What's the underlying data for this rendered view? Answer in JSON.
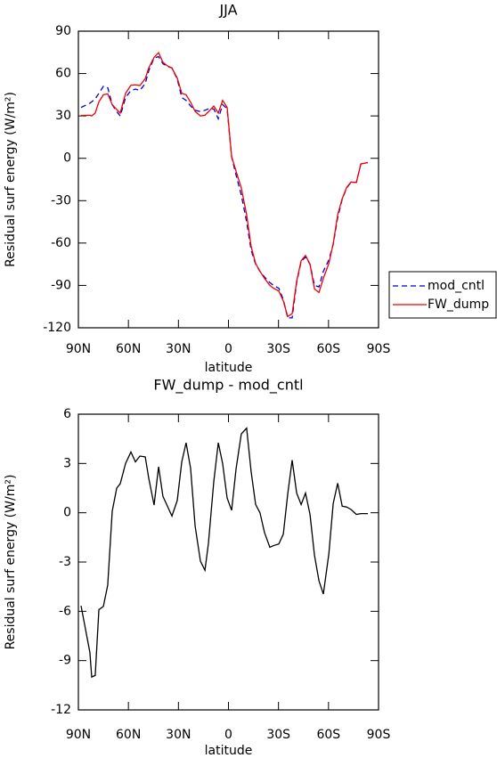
{
  "chart_data": [
    {
      "type": "line",
      "title": "JJA",
      "xlabel": "latitude",
      "ylabel": "Residual surf energy (W/m²)",
      "x": [
        88.4,
        83.1,
        82,
        79.9,
        77.7,
        75,
        72.4,
        69.7,
        67,
        64.9,
        61.7,
        58.5,
        55.8,
        53.1,
        49.9,
        47.8,
        44.6,
        41.9,
        39.3,
        36.6,
        33.9,
        30.7,
        28,
        25.4,
        22.7,
        20,
        16.8,
        14.1,
        12,
        8.8,
        6.1,
        3.5,
        0.8,
        -1.9,
        -4.6,
        -7.7,
        -10.9,
        -13.6,
        -16.3,
        -18.9,
        -21.6,
        -24.8,
        -27,
        -30.2,
        -32.9,
        -35.5,
        -38.2,
        -40.9,
        -43.6,
        -46.2,
        -48.9,
        -51.6,
        -54.3,
        -56.9,
        -60.2,
        -62.8,
        -65.5,
        -68.2,
        -70.9,
        -73.5,
        -76.7,
        -79.4,
        -83.6
      ],
      "series": [
        {
          "name": "mod_cntl",
          "color": "#0000cc",
          "dash": true,
          "values": [
            36,
            39,
            40,
            42,
            46,
            51,
            50,
            38,
            33,
            30,
            43,
            48,
            49,
            48,
            53,
            62,
            71,
            72,
            67,
            65,
            64,
            56,
            43,
            41,
            37,
            34,
            33,
            34,
            35,
            35,
            28,
            38,
            35,
            1,
            -12,
            -26,
            -45,
            -65,
            -75,
            -80,
            -84,
            -88,
            -90,
            -92,
            -100,
            -113,
            -113,
            -88,
            -73,
            -70,
            -75,
            -90,
            -91,
            -80,
            -72,
            -61,
            -42,
            -29,
            -21,
            -17,
            -17,
            -4,
            -3
          ]
        },
        {
          "name": "FW_dump",
          "color": "#ee0000",
          "dash": false,
          "values": [
            30.3,
            30.5,
            30,
            32,
            40,
            45,
            45.6,
            38,
            34.5,
            32,
            46,
            51.7,
            52,
            51.5,
            56.4,
            64,
            71.5,
            74.8,
            68,
            65.4,
            63.8,
            56.8,
            46,
            45,
            39.7,
            33.2,
            30,
            30.5,
            33,
            37,
            32,
            41,
            36,
            1.2,
            -9.3,
            -21,
            -40,
            -62.5,
            -74.5,
            -80,
            -85,
            -90,
            -92,
            -94,
            -101,
            -112,
            -110,
            -87,
            -72.5,
            -68.8,
            -75,
            -92.6,
            -95,
            -85,
            -74.5,
            -60.5,
            -40,
            -28.6,
            -20.6,
            -16.8,
            -17.1,
            -4,
            -3
          ]
        }
      ],
      "xlim": [
        90,
        -90
      ],
      "xticks": [
        {
          "value": 90,
          "label": "90N"
        },
        {
          "value": 60,
          "label": "60N"
        },
        {
          "value": 30,
          "label": "30N"
        },
        0,
        {
          "value": -30,
          "label": "30S"
        },
        {
          "value": -60,
          "label": "60S"
        },
        {
          "value": -90,
          "label": "90S"
        }
      ],
      "ylim": [
        -120,
        90
      ],
      "yticks": [
        -120,
        -90,
        -60,
        -30,
        0,
        30,
        60,
        90
      ],
      "legend": "right"
    },
    {
      "type": "line",
      "title": "FW_dump - mod_cntl",
      "xlabel": "latitude",
      "ylabel": "Residual surf energy (W/m²)",
      "x": [
        88.4,
        83.1,
        82,
        79.9,
        77.7,
        75,
        72.4,
        69.7,
        67,
        64.9,
        61.7,
        58.5,
        55.8,
        53.1,
        49.9,
        47.8,
        44.6,
        41.9,
        39.3,
        36.6,
        33.9,
        30.7,
        28,
        25.4,
        22.7,
        20,
        16.8,
        14.1,
        12,
        8.8,
        6.1,
        3.5,
        0.8,
        -1.9,
        -4.6,
        -7.7,
        -10.9,
        -13.6,
        -16.3,
        -18.9,
        -21.6,
        -24.8,
        -27,
        -30.2,
        -32.9,
        -35.5,
        -38.2,
        -40.9,
        -43.6,
        -46.2,
        -48.9,
        -51.6,
        -54.3,
        -56.9,
        -60.2,
        -62.8,
        -65.5,
        -68.2,
        -70.9,
        -73.5,
        -76.7,
        -79.4,
        -83.6
      ],
      "values": [
        -5.66,
        -8.5,
        -10,
        -9.9,
        -5.9,
        -5.7,
        -4.4,
        0.1,
        1.5,
        1.77,
        3.0,
        3.7,
        3.1,
        3.45,
        3.4,
        2.1,
        0.47,
        2.8,
        1.0,
        0.4,
        -0.2,
        0.75,
        3.1,
        4.26,
        2.7,
        -0.8,
        -2.95,
        -3.5,
        -1.85,
        1.9,
        4.26,
        3.0,
        0.9,
        0.15,
        2.7,
        4.8,
        5.15,
        2.5,
        0.5,
        0.0,
        -1.2,
        -2.1,
        -2.0,
        -1.9,
        -1.3,
        1.1,
        3.2,
        1.2,
        0.5,
        1.2,
        -0.1,
        -2.6,
        -4.15,
        -4.95,
        -2.5,
        0.55,
        1.8,
        0.4,
        0.35,
        0.2,
        -0.1,
        -0.05,
        -0.05
      ],
      "color": "#000000",
      "xlim": [
        90,
        -90
      ],
      "xticks": [
        {
          "value": 90,
          "label": "90N"
        },
        {
          "value": 60,
          "label": "60N"
        },
        {
          "value": 30,
          "label": "30N"
        },
        0,
        {
          "value": -30,
          "label": "30S"
        },
        {
          "value": -60,
          "label": "60S"
        },
        {
          "value": -90,
          "label": "90S"
        }
      ],
      "ylim": [
        -12,
        6
      ],
      "yticks": [
        -12,
        -9,
        -6,
        -3,
        0,
        3,
        6
      ]
    }
  ]
}
